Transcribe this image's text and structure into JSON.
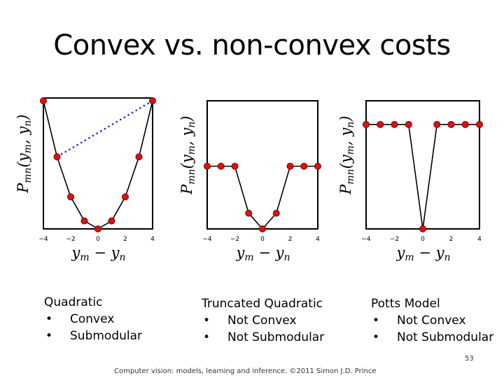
{
  "slide": {
    "title": "Convex vs. non-convex costs",
    "footer": "Computer vision: models, learning and inference.  ©2011 Simon J.D. Prince",
    "page_number": "53"
  },
  "captions": [
    {
      "heading": "Quadratic",
      "bullets": [
        "Convex",
        "Submodular"
      ]
    },
    {
      "heading": "Truncated Quadratic",
      "bullets": [
        "Not Convex",
        "Not Submodular"
      ]
    },
    {
      "heading": "Potts Model",
      "bullets": [
        "Not Convex",
        "Not Submodular"
      ]
    }
  ],
  "chart_data": [
    {
      "type": "line",
      "xlabel": "y_m − y_n",
      "ylabel": "P_mn(y_m, y_n)",
      "xlim": [
        -4,
        4
      ],
      "ylim": [
        0,
        16
      ],
      "xticks": [
        "−4",
        "−2",
        "0",
        "2",
        "4"
      ],
      "x": [
        -4,
        -3,
        -2,
        -1,
        0,
        1,
        2,
        3,
        4
      ],
      "values": [
        16,
        9,
        4,
        1,
        0,
        1,
        4,
        9,
        16
      ],
      "chord": {
        "from": [
          -3,
          9
        ],
        "to": [
          4,
          16
        ],
        "style": "dotted",
        "color": "#1a1ae0"
      }
    },
    {
      "type": "line",
      "xlabel": "y_m − y_n",
      "ylabel": "P_mn(y_m, y_n)",
      "xlim": [
        -4,
        4
      ],
      "ylim": [
        0,
        8
      ],
      "xticks": [
        "−4",
        "−2",
        "0",
        "2",
        "4"
      ],
      "x": [
        -4,
        -3,
        -2,
        -1,
        0,
        1,
        2,
        3,
        4
      ],
      "values": [
        4,
        4,
        4,
        1,
        0,
        1,
        4,
        4,
        4
      ]
    },
    {
      "type": "line",
      "xlabel": "y_m − y_n",
      "ylabel": "P_mn(y_m, y_n)",
      "xlim": [
        -4,
        4
      ],
      "ylim": [
        0,
        1.2
      ],
      "xticks": [
        "−4",
        "−2",
        "0",
        "2",
        "4"
      ],
      "x": [
        -4,
        -3,
        -2,
        -1,
        0,
        1,
        2,
        3,
        4
      ],
      "values": [
        1,
        1,
        1,
        1,
        0,
        1,
        1,
        1,
        1
      ]
    }
  ],
  "colors": {
    "points": "#e01010",
    "chord": "#1a1ae0"
  }
}
